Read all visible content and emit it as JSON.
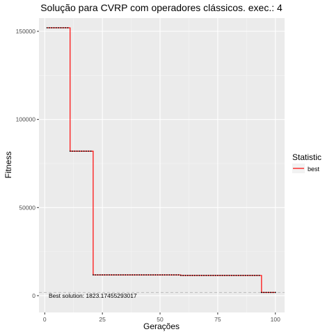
{
  "chart_data": {
    "type": "line",
    "title": "Solução para CVRP com operadores clássicos. exec.: 4",
    "xlabel": "Gerações",
    "ylabel": "Fitness",
    "xlim": [
      -2.5,
      104
    ],
    "ylim": [
      -9500,
      157500
    ],
    "x_ticks": [
      0,
      25,
      50,
      75,
      100
    ],
    "x_tick_labels": [
      "0",
      "25",
      "50",
      "75",
      "100"
    ],
    "y_ticks": [
      0,
      50000,
      100000,
      150000
    ],
    "y_tick_labels": [
      "0",
      "50000",
      "100000",
      "150000"
    ],
    "grid": true,
    "legend_position": "right",
    "legend": {
      "title": "Statistic"
    },
    "series": [
      {
        "name": "best",
        "color": "#ff0000",
        "steps": [
          {
            "from": 1,
            "to": 10,
            "value": 152000
          },
          {
            "from": 11,
            "to": 20,
            "value": 82000
          },
          {
            "from": 21,
            "to": 58,
            "value": 11800
          },
          {
            "from": 59,
            "to": 93,
            "value": 11500
          },
          {
            "from": 94,
            "to": 100,
            "value": 1823.17455293017
          }
        ]
      }
    ],
    "reference_line": {
      "value": 1823.17455293017,
      "color": "#bdbdbd",
      "style": "dashed"
    },
    "annotation": "Best solution: 1823.17455293017"
  }
}
